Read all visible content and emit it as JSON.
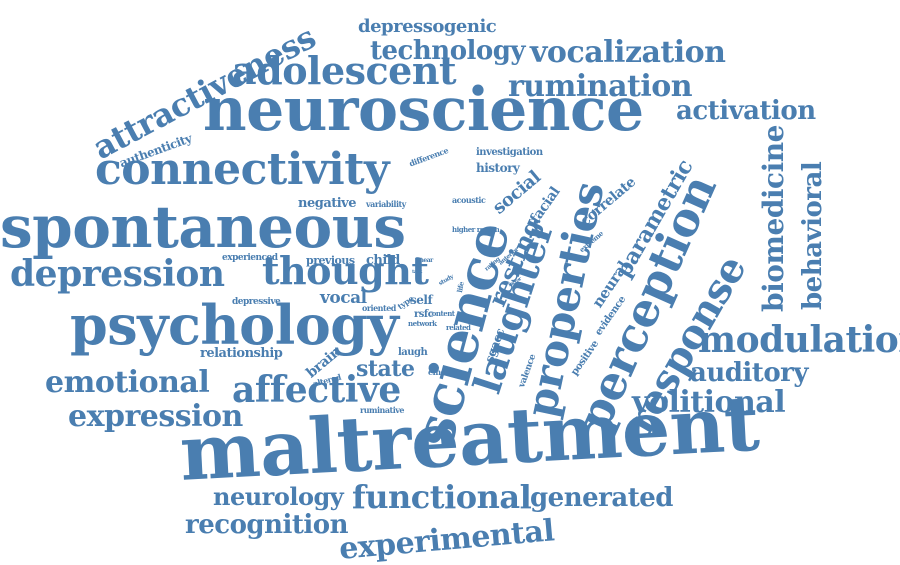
{
  "word_cloud": {
    "color": "#4a7eb0",
    "background": "#ffffff",
    "words": [
      {
        "id": "maltreatment",
        "text": "maltreatment"
      },
      {
        "id": "neuroscience",
        "text": "neuroscience"
      },
      {
        "id": "spontaneous",
        "text": "spontaneous"
      },
      {
        "id": "psychology",
        "text": "psychology"
      },
      {
        "id": "science",
        "text": "science"
      },
      {
        "id": "connectivity",
        "text": "connectivity"
      },
      {
        "id": "perception",
        "text": "perception"
      },
      {
        "id": "properties",
        "text": "properties"
      },
      {
        "id": "laughter",
        "text": "laughter"
      },
      {
        "id": "response",
        "text": "response"
      },
      {
        "id": "depression",
        "text": "depression"
      },
      {
        "id": "thought",
        "text": "thought"
      },
      {
        "id": "adolescent",
        "text": "adolescent"
      },
      {
        "id": "attractiveness",
        "text": "attractiveness"
      },
      {
        "id": "modulation",
        "text": "modulation"
      },
      {
        "id": "expression",
        "text": "expression"
      },
      {
        "id": "emotional",
        "text": "emotional"
      },
      {
        "id": "affective",
        "text": "affective"
      },
      {
        "id": "functional",
        "text": "functional"
      },
      {
        "id": "experimental",
        "text": "experimental"
      },
      {
        "id": "recognition",
        "text": "recognition"
      },
      {
        "id": "neurology",
        "text": "neurology"
      },
      {
        "id": "generated",
        "text": "generated"
      },
      {
        "id": "vocalization",
        "text": "vocalization"
      },
      {
        "id": "technology",
        "text": "technology"
      },
      {
        "id": "rumination",
        "text": "rumination"
      },
      {
        "id": "activation",
        "text": "activation"
      },
      {
        "id": "volitional",
        "text": "volitional"
      },
      {
        "id": "auditory",
        "text": "auditory"
      },
      {
        "id": "biomedicine",
        "text": "biomedicine"
      },
      {
        "id": "behavioral",
        "text": "behavioral"
      },
      {
        "id": "parametric",
        "text": "parametric"
      },
      {
        "id": "resting",
        "text": "resting"
      },
      {
        "id": "depressogenic",
        "text": "depressogenic"
      },
      {
        "id": "state",
        "text": "state"
      },
      {
        "id": "social",
        "text": "social"
      },
      {
        "id": "vocal",
        "text": "vocal"
      },
      {
        "id": "negative",
        "text": "negative"
      },
      {
        "id": "relationship",
        "text": "relationship"
      },
      {
        "id": "brain",
        "text": "brain"
      },
      {
        "id": "correlate",
        "text": "correlate"
      },
      {
        "id": "neural",
        "text": "neural"
      },
      {
        "id": "authenticity",
        "text": "authenticity"
      },
      {
        "id": "history",
        "text": "history"
      },
      {
        "id": "investigation",
        "text": "investigation"
      },
      {
        "id": "facial",
        "text": "facial"
      },
      {
        "id": "sgacc",
        "text": "sgacc"
      },
      {
        "id": "experienced",
        "text": "experienced"
      },
      {
        "id": "previous",
        "text": "previous"
      },
      {
        "id": "child",
        "text": "child"
      },
      {
        "id": "depressive",
        "text": "depressive"
      },
      {
        "id": "self",
        "text": "self"
      },
      {
        "id": "rsfc",
        "text": "rsfc"
      },
      {
        "id": "laugh",
        "text": "laugh"
      },
      {
        "id": "altered",
        "text": "altered"
      },
      {
        "id": "ruminative",
        "text": "ruminative"
      },
      {
        "id": "difference",
        "text": "difference"
      },
      {
        "id": "acoustic",
        "text": "acoustic"
      },
      {
        "id": "variability",
        "text": "variability"
      },
      {
        "id": "higher_region",
        "text": "higher region"
      },
      {
        "id": "content",
        "text": "content"
      },
      {
        "id": "network",
        "text": "network"
      },
      {
        "id": "emotion",
        "text": "emotion"
      },
      {
        "id": "related",
        "text": "related"
      },
      {
        "id": "oriented",
        "text": "oriented"
      },
      {
        "id": "type",
        "text": "type"
      },
      {
        "id": "valence",
        "text": "valence"
      },
      {
        "id": "positive",
        "text": "positive"
      },
      {
        "id": "evidence",
        "text": "evidence"
      },
      {
        "id": "extreme",
        "text": "extreme"
      },
      {
        "id": "rating",
        "text": "rating"
      },
      {
        "id": "anterior",
        "text": "anterior"
      },
      {
        "id": "life",
        "text": "life"
      },
      {
        "id": "linear",
        "text": "linear"
      },
      {
        "id": "study",
        "text": "study"
      },
      {
        "id": "factor",
        "text": "factor"
      },
      {
        "id": "task",
        "text": "task"
      }
    ]
  }
}
